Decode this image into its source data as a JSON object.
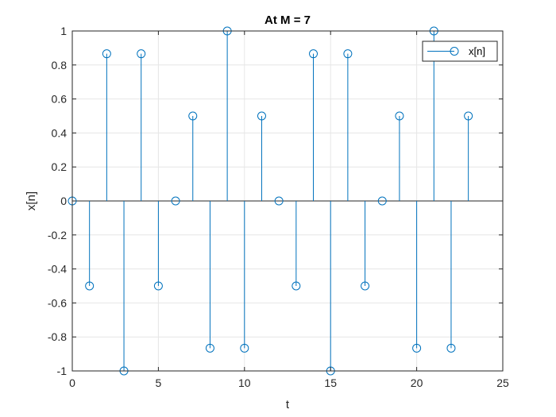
{
  "chart_data": {
    "type": "stem",
    "title": "At M = 7",
    "xlabel": "t",
    "ylabel": "x[n]",
    "xlim": [
      0,
      25
    ],
    "ylim": [
      -1,
      1
    ],
    "xticks": [
      0,
      5,
      10,
      15,
      20,
      25
    ],
    "xtick_labels": [
      "0",
      "5",
      "10",
      "15",
      "20",
      "25"
    ],
    "yticks": [
      -1,
      -0.8,
      -0.6,
      -0.4,
      -0.2,
      0,
      0.2,
      0.4,
      0.6,
      0.8,
      1
    ],
    "ytick_labels": [
      "-1",
      "-0.8",
      "-0.6",
      "-0.4",
      "-0.2",
      "0",
      "0.2",
      "0.4",
      "0.6",
      "0.8",
      "1"
    ],
    "grid": true,
    "legend_position": "top-right",
    "series": [
      {
        "name": "x[n]",
        "color": "#0072BD",
        "marker": "circle",
        "x": [
          0,
          1,
          2,
          3,
          4,
          5,
          6,
          7,
          8,
          9,
          10,
          11,
          12,
          13,
          14,
          15,
          16,
          17,
          18,
          19,
          20,
          21,
          22,
          23
        ],
        "y": [
          0,
          -0.5,
          0.866,
          -1,
          0.866,
          -0.5,
          0,
          0.5,
          -0.866,
          1,
          -0.866,
          0.5,
          0,
          -0.5,
          0.866,
          -1,
          0.866,
          -0.5,
          0,
          0.5,
          -0.866,
          1,
          -0.866,
          0.5
        ]
      }
    ]
  }
}
